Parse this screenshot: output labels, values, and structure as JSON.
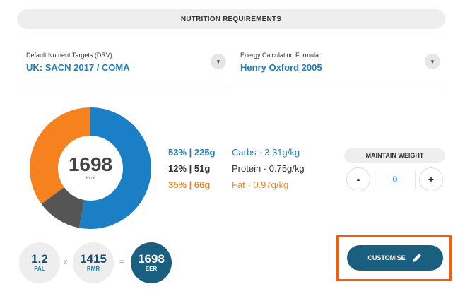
{
  "header": {
    "title": "NUTRITION REQUIREMENTS"
  },
  "targets": {
    "label": "Default Nutrient Targets (DRV)",
    "value": "UK: SACN 2017 / COMA",
    "dropdown_icon": "chevron-down-icon"
  },
  "formula": {
    "label": "Energy Calculation Formula",
    "value": "Henry Oxford 2005",
    "dropdown_icon": "chevron-down-icon"
  },
  "energy": {
    "kcal_value": "1698",
    "kcal_unit": "Kcal",
    "colors": {
      "carbs": "#1a7fc4",
      "protein": "#555555",
      "fat": "#f5821f"
    },
    "macros": [
      {
        "name": "carbs",
        "pct_text": "53% | 225g",
        "desc_text": "Carbs · 3.31g/kg",
        "fraction": 0.53
      },
      {
        "name": "protein",
        "pct_text": "12% | 51g",
        "desc_text": "Protein · 0.75g/kg",
        "fraction": 0.12
      },
      {
        "name": "fat",
        "pct_text": "35% | 66g",
        "desc_text": "Fat · 0.97g/kg",
        "fraction": 0.35
      }
    ]
  },
  "weight": {
    "label": "MAINTAIN WEIGHT",
    "minus": "-",
    "value": "0",
    "plus": "+"
  },
  "formula_row": {
    "pal_value": "1.2",
    "pal_label": "PAL",
    "op_multiply": "x",
    "rmr_value": "1415",
    "rmr_label": "RMR",
    "op_equals": "=",
    "eer_value": "1698",
    "eer_label": "EER"
  },
  "customise": {
    "label": "CUSTOMISE",
    "icon": "pencil-icon"
  }
}
